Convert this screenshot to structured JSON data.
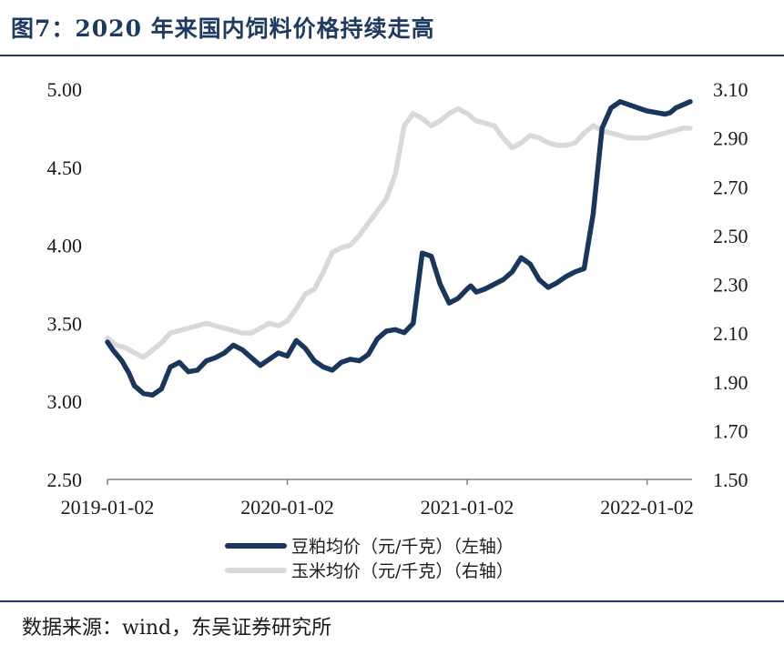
{
  "header": {
    "title": "图7：2020 年来国内饲料价格持续走高"
  },
  "footer": {
    "source": "数据来源：wind，东吴证券研究所"
  },
  "colors": {
    "soy": "#1b365d",
    "corn": "#d9d9d9",
    "accent": "#1f3a60"
  },
  "chart_data": {
    "type": "line",
    "title": "图7：2020 年来国内饲料价格持续走高",
    "x_tick_labels": [
      "2019-01-02",
      "2020-01-02",
      "2021-01-02",
      "2022-01-02"
    ],
    "x_tick_values": [
      0,
      1,
      2,
      3
    ],
    "xlim": [
      0,
      3.25
    ],
    "y_left": {
      "ylim": [
        2.5,
        5.0
      ],
      "tick_labels": [
        "5.00",
        "4.50",
        "4.00",
        "3.50",
        "3.00",
        "2.50"
      ],
      "tick_values": [
        5.0,
        4.5,
        4.0,
        3.5,
        3.0,
        2.5
      ]
    },
    "y_right": {
      "ylim": [
        1.5,
        3.1
      ],
      "tick_labels": [
        "3.10",
        "2.90",
        "2.70",
        "2.50",
        "2.30",
        "2.10",
        "1.90",
        "1.70",
        "1.50"
      ],
      "tick_values": [
        3.1,
        2.9,
        2.7,
        2.5,
        2.3,
        2.1,
        1.9,
        1.7,
        1.5
      ]
    },
    "grid": false,
    "legend_position": "bottom",
    "series": [
      {
        "name": "豆粕均价（元/千克）（左轴）",
        "axis": "left",
        "x": [
          0.0,
          0.03,
          0.08,
          0.12,
          0.15,
          0.2,
          0.25,
          0.3,
          0.35,
          0.4,
          0.45,
          0.5,
          0.55,
          0.6,
          0.65,
          0.7,
          0.75,
          0.8,
          0.85,
          0.9,
          0.95,
          1.0,
          1.05,
          1.1,
          1.15,
          1.2,
          1.25,
          1.3,
          1.35,
          1.4,
          1.45,
          1.5,
          1.55,
          1.6,
          1.65,
          1.7,
          1.75,
          1.8,
          1.85,
          1.9,
          1.95,
          2.0,
          2.02,
          2.05,
          2.1,
          2.15,
          2.2,
          2.25,
          2.3,
          2.35,
          2.4,
          2.45,
          2.5,
          2.55,
          2.6,
          2.65,
          2.7,
          2.75,
          2.8,
          2.85,
          2.9,
          2.95,
          3.0,
          3.05,
          3.1,
          3.13,
          3.16,
          3.2,
          3.24
        ],
        "values": [
          3.38,
          3.33,
          3.26,
          3.18,
          3.1,
          3.05,
          3.04,
          3.08,
          3.22,
          3.25,
          3.19,
          3.2,
          3.26,
          3.28,
          3.31,
          3.36,
          3.33,
          3.28,
          3.23,
          3.27,
          3.31,
          3.29,
          3.39,
          3.34,
          3.26,
          3.22,
          3.2,
          3.25,
          3.27,
          3.26,
          3.3,
          3.4,
          3.45,
          3.46,
          3.44,
          3.5,
          3.95,
          3.93,
          3.75,
          3.63,
          3.66,
          3.72,
          3.74,
          3.7,
          3.72,
          3.75,
          3.78,
          3.83,
          3.92,
          3.88,
          3.78,
          3.73,
          3.76,
          3.8,
          3.83,
          3.85,
          4.2,
          4.75,
          4.88,
          4.92,
          4.9,
          4.88,
          4.86,
          4.85,
          4.84,
          4.85,
          4.88,
          4.9,
          4.92
        ]
      },
      {
        "name": "玉米均价（元/千克）（右轴）",
        "axis": "right",
        "x": [
          0.0,
          0.05,
          0.1,
          0.15,
          0.2,
          0.25,
          0.3,
          0.35,
          0.4,
          0.45,
          0.5,
          0.55,
          0.6,
          0.65,
          0.7,
          0.75,
          0.8,
          0.85,
          0.9,
          0.95,
          1.0,
          1.05,
          1.1,
          1.15,
          1.2,
          1.25,
          1.3,
          1.35,
          1.4,
          1.45,
          1.5,
          1.55,
          1.6,
          1.65,
          1.7,
          1.75,
          1.8,
          1.85,
          1.9,
          1.95,
          2.0,
          2.05,
          2.1,
          2.15,
          2.2,
          2.25,
          2.3,
          2.35,
          2.4,
          2.45,
          2.5,
          2.55,
          2.6,
          2.65,
          2.7,
          2.75,
          2.8,
          2.85,
          2.9,
          2.95,
          3.0,
          3.05,
          3.1,
          3.15,
          3.2,
          3.24
        ],
        "values": [
          2.08,
          2.05,
          2.04,
          2.02,
          2.0,
          2.03,
          2.06,
          2.1,
          2.11,
          2.12,
          2.13,
          2.14,
          2.13,
          2.12,
          2.11,
          2.1,
          2.1,
          2.12,
          2.14,
          2.13,
          2.15,
          2.2,
          2.26,
          2.28,
          2.35,
          2.43,
          2.45,
          2.46,
          2.5,
          2.55,
          2.6,
          2.65,
          2.75,
          2.95,
          3.0,
          2.98,
          2.95,
          2.97,
          3.0,
          3.02,
          3.0,
          2.97,
          2.96,
          2.95,
          2.9,
          2.86,
          2.88,
          2.91,
          2.9,
          2.88,
          2.87,
          2.87,
          2.88,
          2.92,
          2.95,
          2.93,
          2.92,
          2.91,
          2.9,
          2.9,
          2.9,
          2.91,
          2.92,
          2.93,
          2.94,
          2.94
        ]
      }
    ]
  }
}
